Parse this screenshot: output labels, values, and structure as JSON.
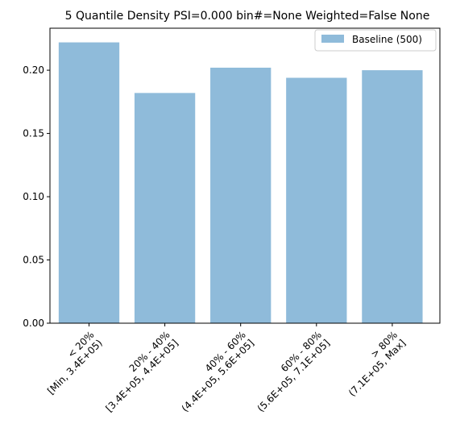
{
  "chart_data": {
    "type": "bar",
    "title": "5 Quantile Density PSI=0.000 bin#=None Weighted=False None",
    "xlabel": "",
    "ylabel": "",
    "categories": [
      [
        "< 20%",
        "[Min, 3.4E+05)"
      ],
      [
        "20% - 40%",
        "[3.4E+05, 4.4E+05]"
      ],
      [
        "40% - 60%",
        "(4.4E+05, 5.6E+05]"
      ],
      [
        "60% - 80%",
        "(5.6E+05, 7.1E+05]"
      ],
      [
        "> 80%",
        "(7.1E+05, Max]"
      ]
    ],
    "series": [
      {
        "name": "Baseline (500)",
        "color": "#8fbbda",
        "values": [
          0.222,
          0.182,
          0.202,
          0.194,
          0.2
        ]
      }
    ],
    "ylim": [
      0,
      0.2332
    ],
    "yticks": [
      0.0,
      0.05,
      0.1,
      0.15,
      0.2
    ],
    "ytick_labels": [
      "0.00",
      "0.05",
      "0.10",
      "0.15",
      "0.20"
    ],
    "grid": false,
    "legend_position": "upper right"
  }
}
